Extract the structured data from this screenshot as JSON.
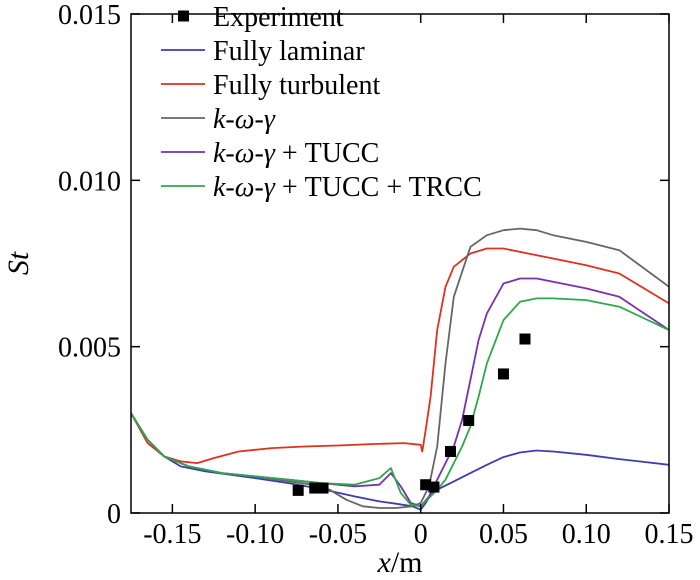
{
  "chart_data": {
    "type": "line",
    "title": "",
    "xlabel": "x/m",
    "ylabel": "St",
    "xlim": [
      -0.175,
      0.15
    ],
    "ylim": [
      0,
      0.015
    ],
    "xticks": [
      -0.15,
      -0.1,
      -0.05,
      0,
      0.05,
      0.1,
      0.15
    ],
    "xtick_labels": [
      "-0.15",
      "-0.10",
      "-0.05",
      "0",
      "0.05",
      "0.10",
      "0.15"
    ],
    "yticks": [
      0,
      0.005,
      0.01,
      0.015
    ],
    "ytick_labels": [
      "0",
      "0.005",
      "0.010",
      "0.015"
    ],
    "grid": false,
    "legend_position": "top-left",
    "legend": [
      {
        "key": "experiment",
        "label": "Experiment",
        "marker": "square",
        "color": "#000000"
      },
      {
        "key": "laminar",
        "label": "Fully laminar",
        "marker": "line",
        "color": "#3c3cb4"
      },
      {
        "key": "turbulent",
        "label": "Fully turbulent",
        "marker": "line",
        "color": "#e03020"
      },
      {
        "key": "kwg",
        "label": "k-ω-γ",
        "marker": "line",
        "color": "#666666"
      },
      {
        "key": "kwg_tucc",
        "label": "k-ω-γ + TUCC",
        "marker": "line",
        "color": "#7a2fb0"
      },
      {
        "key": "kwg_tucc_trcc",
        "label": "k-ω-γ + TUCC + TRCC",
        "marker": "line",
        "color": "#2fa84a"
      }
    ],
    "experiment": {
      "x": [
        -0.074,
        -0.064,
        -0.059,
        0.003,
        0.008,
        0.018,
        0.029,
        0.05,
        0.063
      ],
      "y": [
        0.00068,
        0.00075,
        0.00075,
        0.00085,
        0.00078,
        0.00185,
        0.00278,
        0.00418,
        0.00523
      ]
    },
    "series": [
      {
        "name": "Fully laminar",
        "color": "#3c3cb4",
        "x": [
          -0.175,
          -0.165,
          -0.155,
          -0.145,
          -0.13,
          -0.115,
          -0.1,
          -0.08,
          -0.06,
          -0.04,
          -0.025,
          -0.015,
          -0.005,
          0,
          0.003,
          0.006,
          0.01,
          0.02,
          0.03,
          0.04,
          0.05,
          0.06,
          0.07,
          0.08,
          0.1,
          0.12,
          0.15
        ],
        "y": [
          0.003,
          0.0022,
          0.0017,
          0.0014,
          0.00125,
          0.00115,
          0.00105,
          0.0009,
          0.00072,
          0.0005,
          0.00035,
          0.00028,
          0.0002,
          0.0001,
          0.0003,
          0.00055,
          0.0007,
          0.00095,
          0.0012,
          0.00145,
          0.00168,
          0.00182,
          0.00188,
          0.00185,
          0.00175,
          0.00162,
          0.00145
        ]
      },
      {
        "name": "Fully turbulent",
        "color": "#e03020",
        "x": [
          -0.175,
          -0.165,
          -0.155,
          -0.145,
          -0.135,
          -0.125,
          -0.11,
          -0.09,
          -0.07,
          -0.05,
          -0.03,
          -0.01,
          0,
          0.001,
          0.003,
          0.006,
          0.01,
          0.015,
          0.02,
          0.03,
          0.04,
          0.05,
          0.06,
          0.08,
          0.1,
          0.12,
          0.15
        ],
        "y": [
          0.003,
          0.0021,
          0.0017,
          0.00155,
          0.0015,
          0.00165,
          0.00185,
          0.00195,
          0.002,
          0.00203,
          0.00207,
          0.0021,
          0.00205,
          0.00185,
          0.0025,
          0.0035,
          0.0055,
          0.0068,
          0.0074,
          0.0078,
          0.00795,
          0.00795,
          0.00785,
          0.00765,
          0.00745,
          0.0072,
          0.0063
        ]
      },
      {
        "name": "k-ω-γ",
        "color": "#666666",
        "x": [
          -0.175,
          -0.165,
          -0.155,
          -0.14,
          -0.12,
          -0.1,
          -0.08,
          -0.065,
          -0.055,
          -0.045,
          -0.035,
          -0.025,
          -0.015,
          -0.005,
          0,
          0.005,
          0.01,
          0.015,
          0.02,
          0.03,
          0.04,
          0.05,
          0.06,
          0.07,
          0.08,
          0.1,
          0.12,
          0.15
        ],
        "y": [
          0.003,
          0.0022,
          0.0017,
          0.0014,
          0.0012,
          0.0011,
          0.00095,
          0.00085,
          0.0007,
          0.0004,
          0.0002,
          0.00015,
          0.00015,
          0.0002,
          0.0003,
          0.0008,
          0.002,
          0.0045,
          0.0065,
          0.008,
          0.00835,
          0.0085,
          0.00855,
          0.0085,
          0.00835,
          0.00815,
          0.0079,
          0.0068
        ]
      },
      {
        "name": "k-ω-γ + TUCC",
        "color": "#7a2fb0",
        "x": [
          -0.175,
          -0.165,
          -0.155,
          -0.14,
          -0.12,
          -0.1,
          -0.08,
          -0.06,
          -0.04,
          -0.025,
          -0.018,
          -0.012,
          -0.006,
          0,
          0.005,
          0.01,
          0.015,
          0.02,
          0.025,
          0.03,
          0.035,
          0.04,
          0.05,
          0.06,
          0.07,
          0.08,
          0.1,
          0.12,
          0.15
        ],
        "y": [
          0.003,
          0.0022,
          0.0017,
          0.0014,
          0.0012,
          0.0011,
          0.001,
          0.0009,
          0.0008,
          0.00085,
          0.0012,
          0.0008,
          0.0003,
          0.0002,
          0.0005,
          0.001,
          0.0015,
          0.002,
          0.0028,
          0.004,
          0.0052,
          0.006,
          0.0069,
          0.00705,
          0.00705,
          0.00695,
          0.00675,
          0.0065,
          0.0055
        ]
      },
      {
        "name": "k-ω-γ + TUCC + TRCC",
        "color": "#2fa84a",
        "x": [
          -0.175,
          -0.165,
          -0.155,
          -0.14,
          -0.12,
          -0.1,
          -0.08,
          -0.06,
          -0.04,
          -0.025,
          -0.018,
          -0.012,
          -0.006,
          0,
          0.005,
          0.01,
          0.015,
          0.02,
          0.025,
          0.03,
          0.035,
          0.04,
          0.05,
          0.06,
          0.07,
          0.08,
          0.1,
          0.12,
          0.15
        ],
        "y": [
          0.003,
          0.0022,
          0.0017,
          0.0014,
          0.0012,
          0.0011,
          0.001,
          0.0009,
          0.00085,
          0.00105,
          0.00135,
          0.0006,
          0.00025,
          0.0002,
          0.00045,
          0.0007,
          0.001,
          0.0015,
          0.002,
          0.0026,
          0.0035,
          0.0045,
          0.0058,
          0.00635,
          0.00645,
          0.00645,
          0.0064,
          0.0062,
          0.0055
        ]
      }
    ]
  }
}
